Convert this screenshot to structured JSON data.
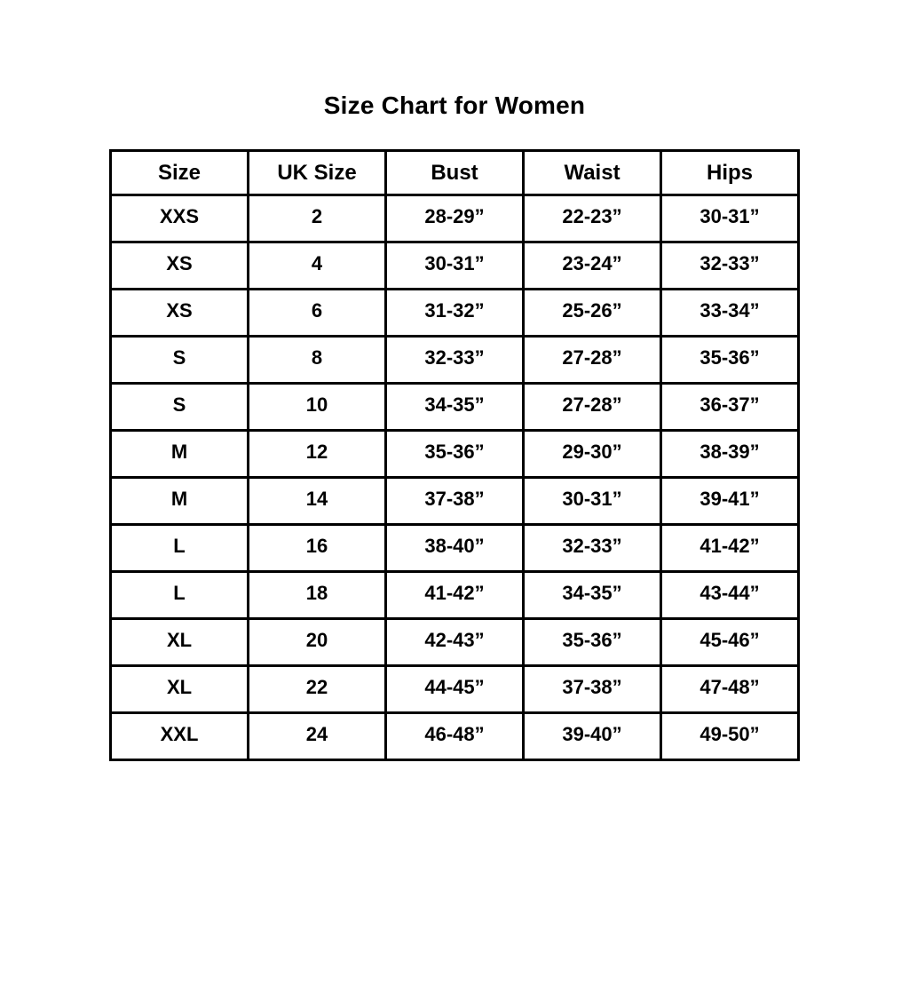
{
  "page": {
    "title": "Size Chart for Women"
  },
  "chart_data": {
    "type": "table",
    "title": "Size Chart for Women",
    "columns": [
      "Size",
      "UK Size",
      "Bust",
      "Waist",
      "Hips"
    ],
    "rows": [
      [
        "XXS",
        "2",
        "28-29”",
        "22-23”",
        "30-31”"
      ],
      [
        "XS",
        "4",
        "30-31”",
        "23-24”",
        "32-33”"
      ],
      [
        "XS",
        "6",
        "31-32”",
        "25-26”",
        "33-34”"
      ],
      [
        "S",
        "8",
        "32-33”",
        "27-28”",
        "35-36”"
      ],
      [
        "S",
        "10",
        "34-35”",
        "27-28”",
        "36-37”"
      ],
      [
        "M",
        "12",
        "35-36”",
        "29-30”",
        "38-39”"
      ],
      [
        "M",
        "14",
        "37-38”",
        "30-31”",
        "39-41”"
      ],
      [
        "L",
        "16",
        "38-40”",
        "32-33”",
        "41-42”"
      ],
      [
        "L",
        "18",
        "41-42”",
        "34-35”",
        "43-44”"
      ],
      [
        "XL",
        "20",
        "42-43”",
        "35-36”",
        "45-46”"
      ],
      [
        "XL",
        "22",
        "44-45”",
        "37-38”",
        "47-48”"
      ],
      [
        "XXL",
        "24",
        "46-48”",
        "39-40”",
        "49-50”"
      ]
    ],
    "text_color": "#000000",
    "border_color": "#000000",
    "background": "#ffffff",
    "grid": true,
    "legend": false
  }
}
